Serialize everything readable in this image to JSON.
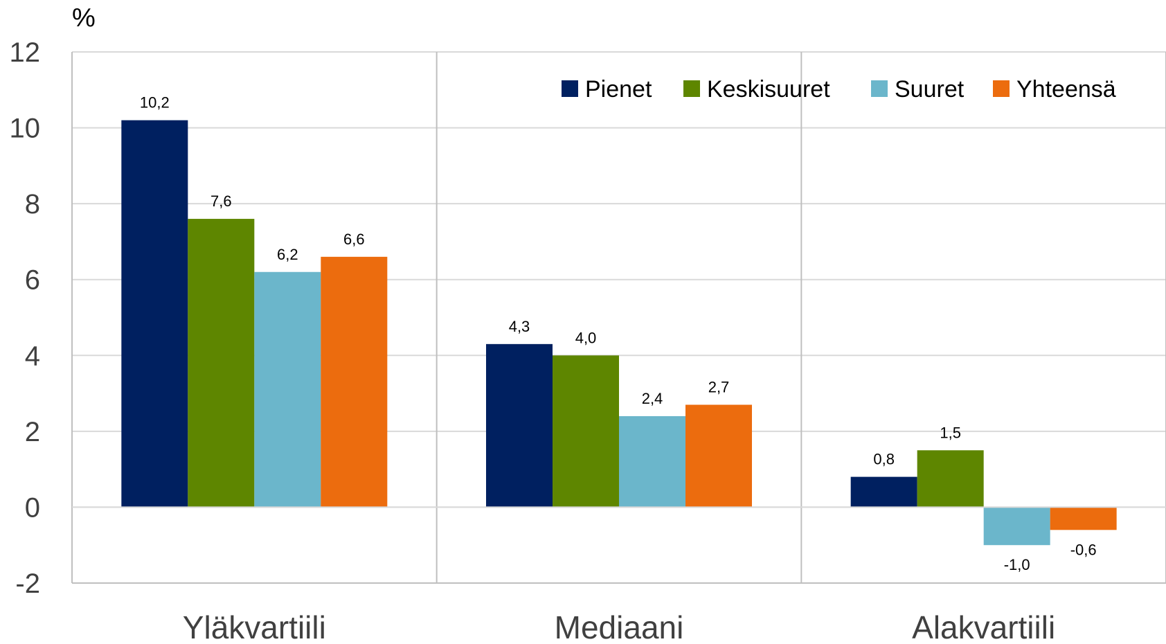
{
  "chart_data": {
    "type": "bar",
    "unit_label": "%",
    "categories": [
      "Yläkvartiili",
      "Mediaani",
      "Alakvartiili"
    ],
    "series": [
      {
        "name": "Pienet",
        "color": "#002060",
        "values": [
          10.2,
          4.3,
          0.8
        ]
      },
      {
        "name": "Keskisuuret",
        "color": "#5E8600",
        "values": [
          7.6,
          4.0,
          1.5
        ]
      },
      {
        "name": "Suuret",
        "color": "#6BB6CB",
        "values": [
          6.2,
          2.4,
          -1.0
        ]
      },
      {
        "name": "Yhteensä",
        "color": "#EC6C0E",
        "values": [
          6.6,
          2.7,
          -0.6
        ]
      }
    ],
    "data_labels": [
      [
        "10,2",
        "4,3",
        "0,8"
      ],
      [
        "7,6",
        "4,0",
        "1,5"
      ],
      [
        "6,2",
        "2,4",
        "-1,0"
      ],
      [
        "6,6",
        "2,7",
        "-0,6"
      ]
    ],
    "ylim": [
      -2,
      12
    ],
    "yticks": [
      12,
      10,
      8,
      6,
      4,
      2,
      0,
      -2
    ],
    "ytick_labels": [
      "12",
      "10",
      "8",
      "6",
      "4",
      "2",
      "0",
      "-2"
    ],
    "grid": true,
    "legend_position": "top-right",
    "title": "",
    "xlabel": "",
    "ylabel": ""
  }
}
